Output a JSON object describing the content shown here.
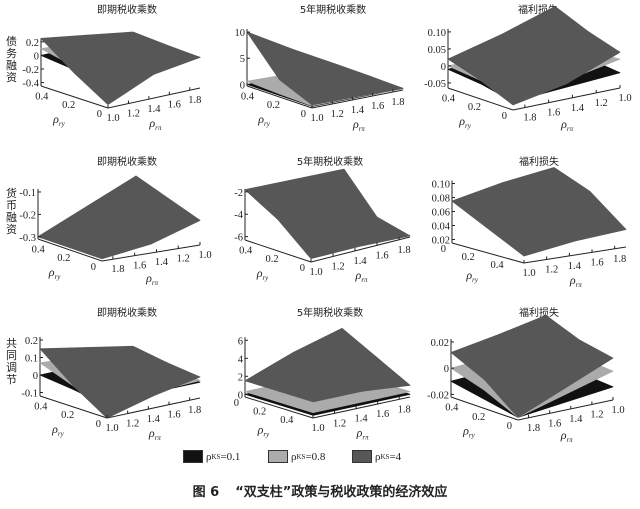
{
  "row_labels": [
    "债务融资",
    "货币融资",
    "共同调节"
  ],
  "legend": [
    {
      "symbol": "ρ",
      "sub": "KS",
      "text": "=0.1",
      "color": "#111111"
    },
    {
      "symbol": "ρ",
      "sub": "KS",
      "text": "=0.8",
      "color": "#ababab"
    },
    {
      "symbol": "ρ",
      "sub": "KS",
      "text": "=4",
      "color": "#575757"
    }
  ],
  "caption": {
    "number": "图 6",
    "text": "“双支柱”政策与税收政策的经济效应"
  },
  "chart_data": [
    {
      "type": "surface",
      "row": "债务融资",
      "title": "即期税收乘数",
      "xlabel": "ρ",
      "xlabel_sub": "rπ",
      "ylabel": "ρ",
      "ylabel_sub": "ry",
      "x_ticks": [
        "1.0",
        "1.2",
        "1.4",
        "1.6",
        "1.8"
      ],
      "y_ticks": [
        "0",
        "0.2",
        "0.4"
      ],
      "z_ticks": [
        -0.4,
        -0.2,
        0,
        0.2
      ],
      "z_tick_labels": [
        "-0.4",
        "-0.2",
        "0",
        "0.2"
      ],
      "grid_x": [
        1.0,
        1.45,
        1.9
      ],
      "grid_y": [
        0,
        0.25,
        0.5
      ],
      "series": [
        {
          "name": "ρKS=0.1",
          "z": [
            [
              -0.2,
              -0.05,
              0
            ],
            [
              -0.05,
              0,
              0
            ],
            [
              0,
              0,
              0
            ]
          ]
        },
        {
          "name": "ρKS=0.8",
          "z": [
            [
              -0.25,
              -0.05,
              0
            ],
            [
              0,
              0.02,
              0
            ],
            [
              0.1,
              0.05,
              0
            ]
          ]
        },
        {
          "name": "ρKS=4",
          "z": [
            [
              -0.4,
              -0.1,
              0
            ],
            [
              -0.1,
              0.05,
              0.02
            ],
            [
              0.25,
              0.15,
              0.05
            ]
          ]
        }
      ]
    },
    {
      "type": "surface",
      "row": "债务融资",
      "title": "5年期税收乘数",
      "xlabel": "ρ",
      "xlabel_sub": "rπ",
      "ylabel": "ρ",
      "ylabel_sub": "ry",
      "x_ticks": [
        "1.0",
        "1.2",
        "1.4",
        "1.6",
        "1.8"
      ],
      "y_ticks": [
        "0",
        "0.2",
        "0.4"
      ],
      "z_ticks": [
        0,
        5,
        10
      ],
      "z_tick_labels": [
        "0",
        "5",
        "10"
      ],
      "grid_x": [
        1.0,
        1.45,
        1.9
      ],
      "grid_y": [
        0,
        0.25,
        0.5
      ],
      "series": [
        {
          "name": "ρKS=0.1",
          "z": [
            [
              0,
              0,
              0
            ],
            [
              0,
              0,
              0
            ],
            [
              0,
              0,
              0
            ]
          ]
        },
        {
          "name": "ρKS=0.8",
          "z": [
            [
              0.1,
              0.1,
              0
            ],
            [
              0.3,
              0.2,
              0.1
            ],
            [
              0.6,
              0.4,
              0.2
            ]
          ]
        },
        {
          "name": "ρKS=4",
          "z": [
            [
              0.3,
              0.2,
              0
            ],
            [
              3,
              2,
              0.2
            ],
            [
              10,
              5,
              0.3
            ]
          ]
        }
      ]
    },
    {
      "type": "surface",
      "row": "债务融资",
      "title": "福利损失",
      "xlabel": "ρ",
      "xlabel_sub": "rπ",
      "ylabel": "ρ",
      "ylabel_sub": "ry",
      "x_ticks": [
        "1.8",
        "1.6",
        "1.4",
        "1.2",
        "1.0"
      ],
      "y_ticks": [
        "0",
        "0.2",
        "0.4"
      ],
      "z_ticks": [
        -0.05,
        0,
        0.05,
        0.1
      ],
      "z_tick_labels": [
        "-0.05",
        "0",
        "0.05",
        "0.10"
      ],
      "grid_x": [
        1.0,
        1.45,
        1.9
      ],
      "grid_y": [
        0,
        0.25,
        0.5
      ],
      "series": [
        {
          "name": "ρKS=0.1",
          "z": [
            [
              -0.02,
              -0.03,
              -0.04
            ],
            [
              -0.01,
              -0.01,
              -0.02
            ],
            [
              0,
              -0.005,
              -0.01
            ]
          ]
        },
        {
          "name": "ρKS=0.8",
          "z": [
            [
              0.02,
              -0.01,
              -0.03
            ],
            [
              0.01,
              0,
              -0.01
            ],
            [
              0,
              0,
              0
            ]
          ]
        },
        {
          "name": "ρKS=4",
          "z": [
            [
              0.04,
              -0.02,
              -0.05
            ],
            [
              0.07,
              0.02,
              -0.01
            ],
            [
              0.11,
              0.06,
              0.02
            ]
          ]
        }
      ]
    },
    {
      "type": "surface",
      "row": "货币融资",
      "title": "即期税收乘数",
      "xlabel": "ρ",
      "xlabel_sub": "rπ",
      "ylabel": "ρ",
      "ylabel_sub": "ry",
      "x_ticks": [
        "1.8",
        "1.6",
        "1.4",
        "1.2",
        "1.0"
      ],
      "y_ticks": [
        "0",
        "0.2",
        "0.4"
      ],
      "z_ticks": [
        -0.3,
        -0.2,
        -0.1
      ],
      "z_tick_labels": [
        "-0.3",
        "-0.2",
        "-0.1"
      ],
      "grid_x": [
        1.0,
        1.45,
        1.9
      ],
      "grid_y": [
        0,
        0.25,
        0.5
      ],
      "series": [
        {
          "name": "ρKS=4",
          "z": [
            [
              -0.2,
              -0.27,
              -0.3
            ],
            [
              -0.15,
              -0.23,
              -0.3
            ],
            [
              -0.1,
              -0.2,
              -0.3
            ]
          ]
        }
      ]
    },
    {
      "type": "surface",
      "row": "货币融资",
      "title": "5年期税收乘数",
      "xlabel": "ρ",
      "xlabel_sub": "rπ",
      "ylabel": "ρ",
      "ylabel_sub": "ry",
      "x_ticks": [
        "1.0",
        "1.2",
        "1.4",
        "1.6",
        "1.8"
      ],
      "y_ticks": [
        "0",
        "0.2",
        "0.4"
      ],
      "z_ticks": [
        -6,
        -4,
        -2
      ],
      "z_tick_labels": [
        "-6",
        "-4",
        "-2"
      ],
      "grid_x": [
        1.0,
        1.45,
        1.9
      ],
      "grid_y": [
        0,
        0.25,
        0.5
      ],
      "series": [
        {
          "name": "ρKS=4",
          "z": [
            [
              -6,
              -6,
              -6.2
            ],
            [
              -3.5,
              -3.8,
              -5.5
            ],
            [
              -1.8,
              -2,
              -2.2
            ]
          ]
        }
      ]
    },
    {
      "type": "surface",
      "row": "货币融资",
      "title": "福利损失",
      "xlabel": "ρ",
      "xlabel_sub": "rπ",
      "ylabel": "ρ",
      "ylabel_sub": "ry",
      "x_ticks": [
        "1.0",
        "1.2",
        "1.4",
        "1.6",
        "1.8"
      ],
      "y_ticks": [
        "0",
        "0.2",
        "0.4"
      ],
      "z_ticks": [
        0.02,
        0.04,
        0.06,
        0.08,
        0.1
      ],
      "z_tick_labels": [
        "0.02",
        "0.04",
        "0.06",
        "0.08",
        "0.10"
      ],
      "grid_x": [
        1.0,
        1.45,
        1.9
      ],
      "grid_y": [
        0,
        0.25,
        0.5
      ],
      "series": [
        {
          "name": "ρKS=4",
          "z": [
            [
              0.075,
              0.09,
              0.1
            ],
            [
              0.05,
              0.07,
              0.08
            ],
            [
              0.025,
              0.035,
              0.04
            ]
          ]
        }
      ]
    },
    {
      "type": "surface",
      "row": "共同调节",
      "title": "即期税收乘数",
      "xlabel": "ρ",
      "xlabel_sub": "rπ",
      "ylabel": "ρ",
      "ylabel_sub": "ry",
      "x_ticks": [
        "1.0",
        "1.2",
        "1.4",
        "1.6",
        "1.8"
      ],
      "y_ticks": [
        "0",
        "0.2",
        "0.4"
      ],
      "z_ticks": [
        -0.1,
        0,
        0.1,
        0.2
      ],
      "z_tick_labels": [
        "-0.1",
        "0",
        "0.1",
        "0.2"
      ],
      "grid_x": [
        1.0,
        1.45,
        1.9
      ],
      "grid_y": [
        0,
        0.25,
        0.5
      ],
      "series": [
        {
          "name": "ρKS=0.1",
          "z": [
            [
              -0.05,
              -0.03,
              -0.03
            ],
            [
              -0.02,
              -0.01,
              -0.01
            ],
            [
              0,
              0,
              0
            ]
          ]
        },
        {
          "name": "ρKS=0.8",
          "z": [
            [
              -0.08,
              -0.03,
              -0.02
            ],
            [
              0,
              0.01,
              0
            ],
            [
              0.07,
              0.05,
              0.01
            ]
          ]
        },
        {
          "name": "ρKS=4",
          "z": [
            [
              -0.12,
              -0.05,
              0
            ],
            [
              0,
              0.03,
              0.02
            ],
            [
              0.15,
              0.1,
              0.05
            ]
          ]
        }
      ]
    },
    {
      "type": "surface",
      "row": "共同调节",
      "title": "5年期税收乘数",
      "xlabel": "ρ",
      "xlabel_sub": "rπ",
      "ylabel": "ρ",
      "ylabel_sub": "ry",
      "x_ticks": [
        "1.0",
        "1.2",
        "1.4",
        "1.6",
        "1.8"
      ],
      "y_ticks": [
        "0",
        "0.2",
        "0.4"
      ],
      "z_ticks": [
        0,
        2,
        4,
        6
      ],
      "z_tick_labels": [
        "0",
        "2",
        "4",
        "6"
      ],
      "grid_x": [
        1.0,
        1.45,
        1.9
      ],
      "grid_y": [
        0,
        0.25,
        0.5
      ],
      "series": [
        {
          "name": "ρKS=0.1",
          "z": [
            [
              0,
              0,
              0
            ],
            [
              0,
              0,
              0
            ],
            [
              0,
              0,
              0
            ]
          ]
        },
        {
          "name": "ρKS=0.8",
          "z": [
            [
              0.3,
              0.3,
              0.3
            ],
            [
              0.3,
              0.3,
              0.3
            ],
            [
              0.3,
              0.3,
              0.3
            ]
          ]
        },
        {
          "name": "ρKS=4",
          "z": [
            [
              1.5,
              3.5,
              5
            ],
            [
              1.5,
              3,
              3
            ],
            [
              1.5,
              1.5,
              1
            ]
          ]
        }
      ]
    },
    {
      "type": "surface",
      "row": "共同调节",
      "title": "福利损失",
      "xlabel": "ρ",
      "xlabel_sub": "rπ",
      "ylabel": "ρ",
      "ylabel_sub": "ry",
      "x_ticks": [
        "1.8",
        "1.6",
        "1.4",
        "1.2",
        "1.0"
      ],
      "y_ticks": [
        "0",
        "0.2",
        "0.4"
      ],
      "z_ticks": [
        -0.02,
        0,
        0.02
      ],
      "z_tick_labels": [
        "-0.02",
        "0",
        "0.02"
      ],
      "grid_x": [
        1.0,
        1.45,
        1.9
      ],
      "grid_y": [
        0,
        0.25,
        0.5
      ],
      "series": [
        {
          "name": "ρKS=0.1",
          "z": [
            [
              -0.012,
              -0.016,
              -0.02
            ],
            [
              -0.01,
              -0.012,
              -0.015
            ],
            [
              -0.005,
              -0.008,
              -0.01
            ]
          ]
        },
        {
          "name": "ρKS=0.8",
          "z": [
            [
              0,
              -0.01,
              -0.02
            ],
            [
              0.002,
              -0.003,
              -0.008
            ],
            [
              0.005,
              0.002,
              0
            ]
          ]
        },
        {
          "name": "ρKS=4",
          "z": [
            [
              0.01,
              -0.005,
              -0.02
            ],
            [
              0.015,
              0.008,
              0
            ],
            [
              0.025,
              0.018,
              0.012
            ]
          ]
        }
      ]
    }
  ]
}
